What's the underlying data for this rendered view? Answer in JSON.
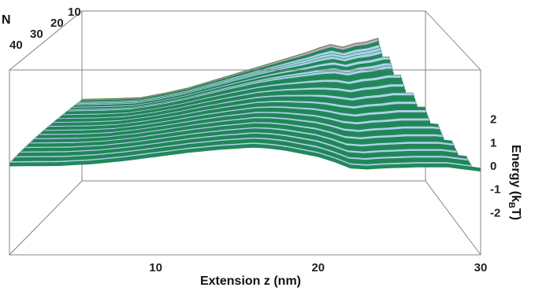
{
  "chart_data": {
    "type": "surface3d",
    "title": "",
    "xlabel": "Extension z (nm)",
    "ylabel_main": "Energy (k",
    "ylabel_sub": "B",
    "ylabel_end": "T)",
    "depth_label": "N",
    "x_ticks": [
      10,
      20,
      30
    ],
    "y_ticks": [
      2,
      1,
      0,
      -1,
      -2
    ],
    "depth_ticks": [
      10,
      20,
      30,
      40
    ],
    "xlim": [
      1,
      30
    ],
    "ylim": [
      -2.5,
      2.5
    ],
    "depth_range": [
      1,
      50
    ],
    "back_curve_x": [
      1,
      4,
      6,
      8,
      10,
      12,
      14,
      16,
      17,
      18,
      19,
      20,
      21,
      22,
      23,
      24,
      25,
      26
    ],
    "back_curve_y": [
      -0.95,
      -0.9,
      -0.85,
      -0.6,
      -0.3,
      0.1,
      0.5,
      0.9,
      1.1,
      1.3,
      1.5,
      1.7,
      1.95,
      2.15,
      2.0,
      2.2,
      2.3,
      2.5
    ],
    "front_curve_x": [
      1,
      4,
      6,
      8,
      10,
      12,
      14,
      15,
      16,
      17,
      18,
      19,
      20,
      21,
      22,
      23,
      24,
      26,
      28,
      29,
      30
    ],
    "front_curve_y": [
      0.15,
      0.17,
      0.25,
      0.4,
      0.6,
      0.8,
      0.95,
      1.0,
      1.05,
      1.0,
      0.9,
      0.75,
      0.6,
      0.35,
      0.05,
      0.0,
      0.05,
      0.1,
      0.1,
      0.0,
      -0.1
    ],
    "colors": {
      "back": "#c7a4c7",
      "back_edge": "#5a8a4a",
      "band_dark": "#1f8a5a",
      "band_light": "#a8d4e8",
      "front_edge": "#2a7a55"
    }
  }
}
